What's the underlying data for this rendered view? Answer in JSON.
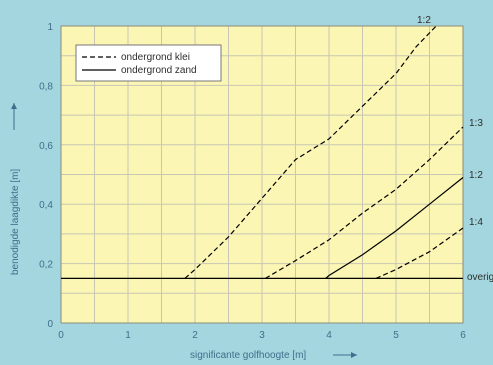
{
  "chart_data": {
    "type": "line",
    "xlabel": "significante golfhoogte [m]",
    "ylabel": "benodigde laagdikte [m]",
    "xlim": [
      0,
      6
    ],
    "ylim": [
      0,
      1
    ],
    "x_ticks": [
      "0",
      "1",
      "2",
      "3",
      "4",
      "5",
      "6"
    ],
    "y_ticks": [
      "0",
      "0,2",
      "0,4",
      "0,6",
      "0,8",
      "1"
    ],
    "grid": true,
    "legend_position": "top-left",
    "legend": [
      {
        "label": "ondergrond klei",
        "style": "dashed"
      },
      {
        "label": "ondergrond zand",
        "style": "solid"
      }
    ],
    "colors": {
      "outer_background": "#a3d6de",
      "plot_background": "#fbf6b4",
      "grid": "#c9c6b3",
      "axis_text": "#3f6f8d",
      "line": "#000000"
    },
    "series": [
      {
        "name": "1:2",
        "style": "dashed",
        "points": [
          [
            1.85,
            0.15
          ],
          [
            2.0,
            0.18
          ],
          [
            2.5,
            0.29
          ],
          [
            3.0,
            0.42
          ],
          [
            3.5,
            0.55
          ],
          [
            4.0,
            0.62
          ],
          [
            4.5,
            0.73
          ],
          [
            5.0,
            0.84
          ],
          [
            5.3,
            0.93
          ],
          [
            5.6,
            1.0
          ]
        ]
      },
      {
        "name": "1:3",
        "style": "dashed",
        "points": [
          [
            3.05,
            0.15
          ],
          [
            3.5,
            0.21
          ],
          [
            4.0,
            0.28
          ],
          [
            4.5,
            0.37
          ],
          [
            5.0,
            0.45
          ],
          [
            5.5,
            0.55
          ],
          [
            6.0,
            0.66
          ]
        ]
      },
      {
        "name": "1:2",
        "style": "solid",
        "points": [
          [
            3.95,
            0.15
          ],
          [
            4.0,
            0.16
          ],
          [
            4.5,
            0.23
          ],
          [
            5.0,
            0.31
          ],
          [
            5.5,
            0.4
          ],
          [
            6.0,
            0.49
          ]
        ]
      },
      {
        "name": "1:4",
        "style": "dashed",
        "points": [
          [
            4.7,
            0.15
          ],
          [
            5.0,
            0.18
          ],
          [
            5.5,
            0.24
          ],
          [
            6.0,
            0.32
          ]
        ]
      },
      {
        "name": "overig",
        "style": "solid",
        "points": [
          [
            0,
            0.15
          ],
          [
            6,
            0.15
          ]
        ]
      }
    ]
  }
}
